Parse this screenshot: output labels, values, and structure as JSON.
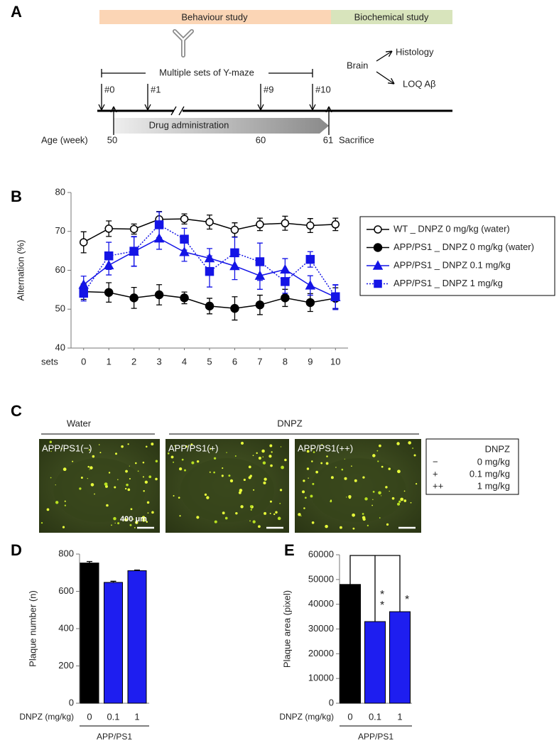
{
  "panel_labels": [
    "A",
    "B",
    "C",
    "D",
    "E"
  ],
  "timeline": {
    "behaviour": "Behaviour study",
    "biochemical": "Biochemical study",
    "ymaze": "Multiple sets of Y-maze",
    "sets": [
      "#0",
      "#1",
      "#9",
      "#10"
    ],
    "drug": "Drug administration",
    "age_label": "Age (week)",
    "ages": [
      "50",
      "60",
      "61"
    ],
    "sacrifice": "Sacrifice",
    "brain": "Brain",
    "histology": "Histology",
    "loq": "LOQ Aβ"
  },
  "chart_data": [
    {
      "type": "line",
      "x_label": "sets",
      "y_label": "Alternation (%)",
      "x": [
        0,
        1,
        2,
        3,
        4,
        5,
        6,
        7,
        8,
        9,
        10
      ],
      "xlim": [
        -0.5,
        10.5
      ],
      "xticks": [
        0,
        1,
        2,
        3,
        4,
        5,
        6,
        7,
        8,
        9,
        10
      ],
      "ylim": [
        40,
        80
      ],
      "yticks": [
        40,
        50,
        60,
        70,
        80
      ],
      "legend": "right",
      "series": [
        {
          "name": "WT _ DNPZ 0 mg/kg (water)",
          "color": "#000000",
          "marker": "circle-open",
          "line_style": "solid",
          "values": [
            67.2,
            70.7,
            70.6,
            73.1,
            73.2,
            72.4,
            70.4,
            71.8,
            72.1,
            71.5,
            71.8
          ],
          "errors": [
            2.7,
            2.0,
            1.3,
            2.0,
            1.3,
            1.8,
            1.8,
            1.6,
            1.8,
            1.8,
            1.6
          ]
        },
        {
          "name": "APP/PS1 _ DNPZ 0 mg/kg (water)",
          "color": "#000000",
          "marker": "circle",
          "line_style": "solid",
          "values": [
            54.5,
            54.3,
            52.9,
            53.7,
            52.9,
            50.8,
            50.2,
            51.1,
            52.9,
            51.7,
            52.8
          ],
          "errors": [
            2.0,
            2.5,
            2.7,
            2.6,
            1.5,
            2.0,
            3.0,
            2.5,
            2.2,
            2.3,
            2.7
          ]
        },
        {
          "name": "APP/PS1 _ DNPZ 0.1 mg/kg",
          "color": "#1414e6",
          "marker": "triangle",
          "line_style": "solid",
          "values": [
            56.3,
            61.3,
            64.8,
            68.2,
            64.7,
            63.1,
            61.1,
            58.6,
            60.2,
            56.1,
            53.1
          ],
          "errors": [
            2.2,
            2.5,
            3.8,
            2.8,
            2.4,
            2.5,
            3.5,
            3.5,
            2.8,
            2.5,
            3.2
          ]
        },
        {
          "name": "APP/PS1 _ DNPZ 1 mg/kg",
          "color": "#1414e6",
          "marker": "square",
          "line_style": "dotted",
          "values": [
            54.1,
            63.7,
            64.9,
            71.7,
            68.0,
            59.7,
            64.5,
            62.2,
            57.1,
            62.8,
            53.2
          ],
          "errors": [
            2.0,
            3.5,
            3.8,
            3.3,
            2.8,
            4.0,
            4.0,
            4.8,
            3.0,
            2.0,
            3.0
          ]
        }
      ]
    },
    {
      "type": "bar",
      "y_label": "Plaque number (n)",
      "x_label": "DNPZ (mg/kg)",
      "group_label": "APP/PS1",
      "categories": [
        "0",
        "0.1",
        "1"
      ],
      "values": [
        752,
        648,
        711
      ],
      "errors": [
        8,
        6,
        3
      ],
      "colors": [
        "#000000",
        "#1e1ef0",
        "#1e1ef0"
      ],
      "ylim": [
        0,
        800
      ],
      "yticks": [
        0,
        200,
        400,
        600,
        800
      ]
    },
    {
      "type": "bar",
      "y_label": "Plaque area (pixel)",
      "x_label": "DNPZ (mg/kg)",
      "group_label": "APP/PS1",
      "categories": [
        "0",
        "0.1",
        "1"
      ],
      "values": [
        48000,
        33000,
        37000
      ],
      "colors": [
        "#000000",
        "#1e1ef0",
        "#1e1ef0"
      ],
      "ylim": [
        0,
        60000
      ],
      "yticks": [
        0,
        10000,
        20000,
        30000,
        40000,
        50000,
        60000
      ],
      "annotations": [
        "*",
        "*",
        "*"
      ]
    }
  ],
  "histology": {
    "group_water": "Water",
    "group_dnpz": "DNPZ",
    "images": [
      "APP/PS1(−)",
      "APP/PS1(+)",
      "APP/PS1(++)"
    ],
    "scale_bar": "400 μm",
    "legend": {
      "title": "DNPZ",
      "rows": [
        [
          "−",
          "0 mg/kg"
        ],
        [
          "+",
          "0.1 mg/kg"
        ],
        [
          "++",
          "1 mg/kg"
        ]
      ]
    }
  }
}
